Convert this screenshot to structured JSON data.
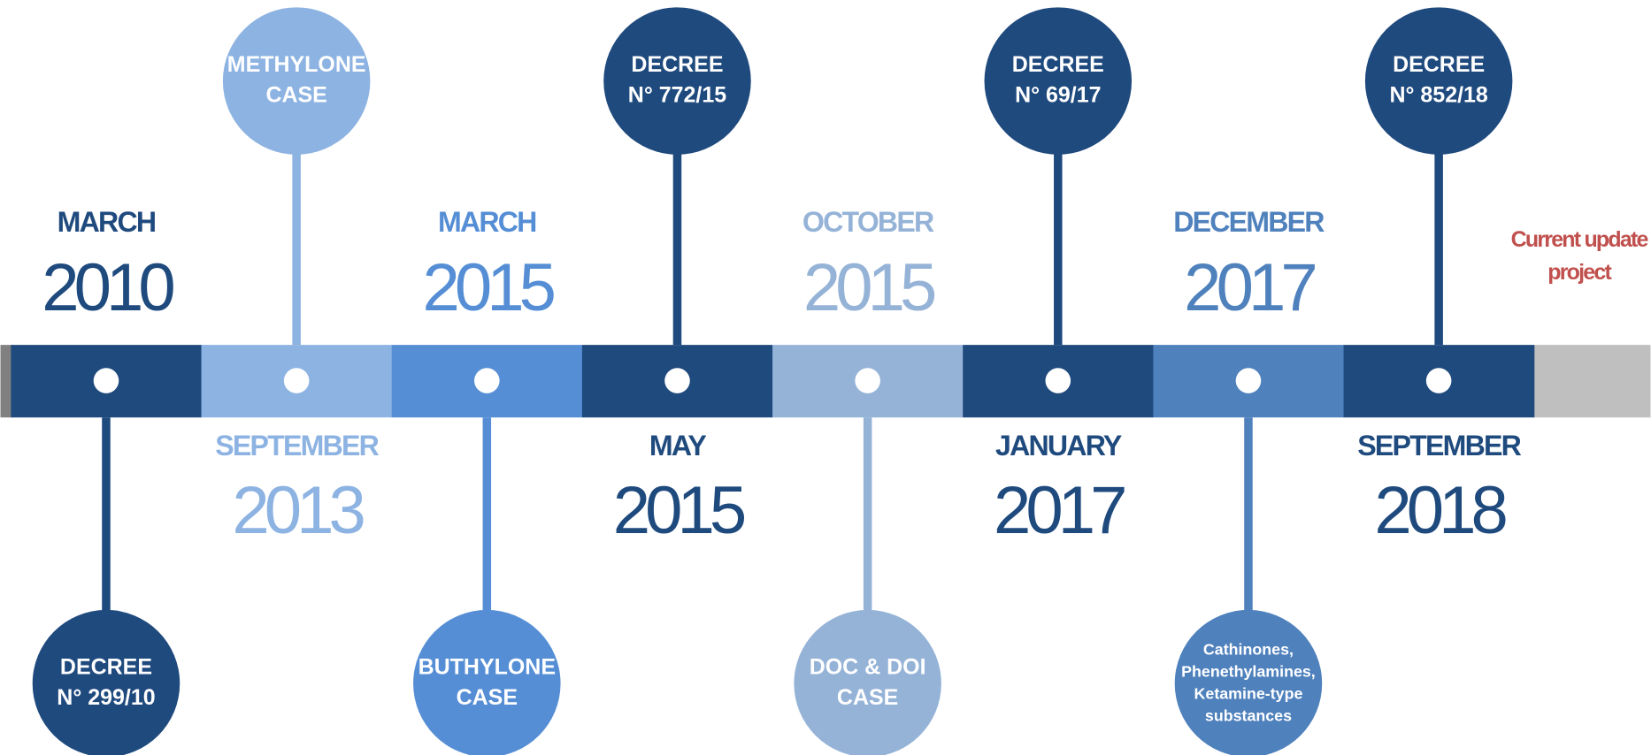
{
  "events": [
    {
      "month": "MARCH",
      "year": "2010",
      "label": [
        "DECREE",
        "N° 299/10"
      ],
      "color": "#1f4a7e"
    },
    {
      "month": "SEPTEMBER",
      "year": "2013",
      "label": [
        "METHYLONE",
        "CASE"
      ],
      "color": "#8db3e2"
    },
    {
      "month": "MARCH",
      "year": "2015",
      "label": [
        "BUTHYLONE",
        "CASE"
      ],
      "color": "#558ed5"
    },
    {
      "month": "MAY",
      "year": "2015",
      "label": [
        "DECREE",
        "N° 772/15"
      ],
      "color": "#1f4a7e"
    },
    {
      "month": "OCTOBER",
      "year": "2015",
      "label": [
        "DOC & DOI",
        "CASE"
      ],
      "color": "#95b3d7"
    },
    {
      "month": "JANUARY",
      "year": "2017",
      "label": [
        "DECREE",
        "N° 69/17"
      ],
      "color": "#1f4a7e"
    },
    {
      "month": "DECEMBER",
      "year": "2017",
      "label": [
        "Cathinones,",
        "Phenethylamines,",
        "Ketamine-type",
        "substances"
      ],
      "color": "#4f81bd"
    },
    {
      "month": "SEPTEMBER",
      "year": "2018",
      "label": [
        "DECREE",
        "N° 852/18"
      ],
      "color": "#1f4a7e"
    }
  ],
  "note": [
    "Current update",
    "project"
  ]
}
